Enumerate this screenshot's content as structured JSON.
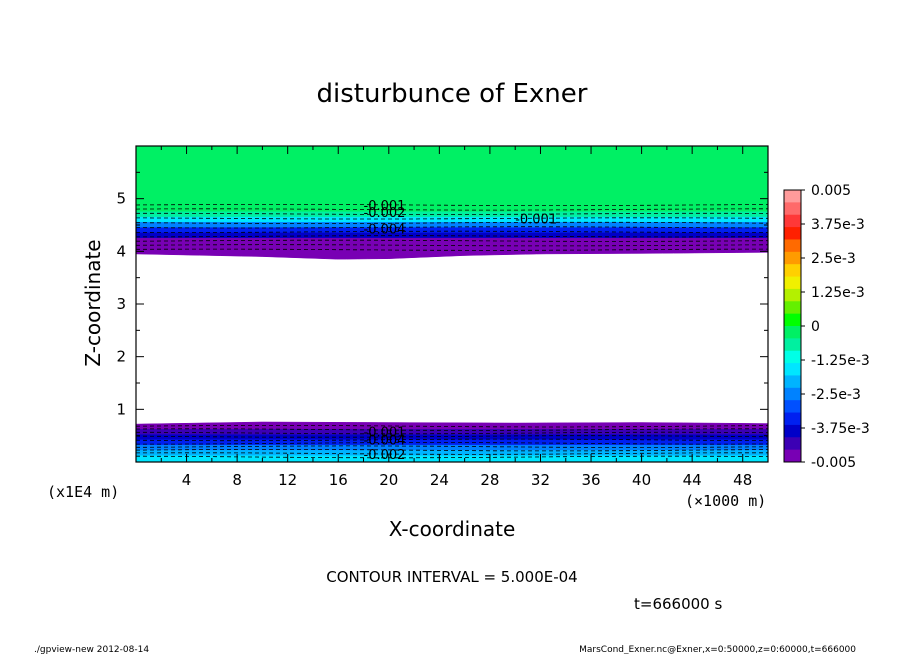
{
  "chart_data": {
    "type": "heatmap",
    "title": "disturbunce of Exner",
    "xlabel": "X-coordinate",
    "ylabel": "Z-coordinate",
    "x_unit": "(×1000 m)",
    "y_unit": "(x1E4 m)",
    "xlim": [
      0,
      50
    ],
    "ylim": [
      0,
      6
    ],
    "x_ticks": [
      4,
      8,
      12,
      16,
      20,
      24,
      28,
      32,
      36,
      40,
      44,
      48
    ],
    "y_ticks": [
      1,
      2,
      3,
      4,
      5
    ],
    "grid": false,
    "colorbar": {
      "placement": "right",
      "range": [
        -0.005,
        0.005
      ],
      "labels": [
        "0.005",
        "3.75e-3",
        "2.5e-3",
        "1.25e-3",
        "0",
        "-1.25e-3",
        "-2.5e-3",
        "-3.75e-3",
        "-0.005"
      ],
      "colors": [
        "#ff9b9b",
        "#ff6a6a",
        "#ff3838",
        "#ff2000",
        "#ff6a00",
        "#ff9b00",
        "#ffd000",
        "#f0f000",
        "#b4f000",
        "#64f000",
        "#00ff00",
        "#00f064",
        "#00f0a0",
        "#00ffe6",
        "#00e6ff",
        "#00b4ff",
        "#0082ff",
        "#0050ff",
        "#0020f0",
        "#0000c8",
        "#3c00b4",
        "#7800b4"
      ]
    },
    "contour_interval_label": "CONTOUR INTERVAL = 5.000E-04",
    "upper_band": {
      "z_top": 4.88,
      "z_bottom_min": 3.85,
      "z_bottom_max": 3.98,
      "bottom_profile": [
        [
          0,
          3.95
        ],
        [
          10,
          3.9
        ],
        [
          16,
          3.85
        ],
        [
          20,
          3.86
        ],
        [
          26,
          3.92
        ],
        [
          32,
          3.95
        ],
        [
          40,
          3.96
        ],
        [
          50,
          3.98
        ]
      ],
      "levels": [
        0.0,
        -0.001,
        -0.002,
        -0.003,
        -0.004,
        -0.005
      ],
      "contour_labels": [
        "-0.001",
        "-0.002",
        "-0.004",
        "-0.001"
      ]
    },
    "lower_band": {
      "z_top_min": 0.72,
      "z_top_max": 0.78,
      "top_profile": [
        [
          0,
          0.72
        ],
        [
          10,
          0.76
        ],
        [
          20,
          0.75
        ],
        [
          30,
          0.74
        ],
        [
          40,
          0.75
        ],
        [
          50,
          0.73
        ]
      ],
      "levels": [
        -0.005,
        -0.004,
        -0.003,
        -0.002,
        -0.001
      ],
      "contour_labels": [
        "-0.001",
        "-0.004",
        "-0.002"
      ]
    },
    "time_label": "t=666000 s"
  },
  "footer": {
    "left": "./gpview-new   2012-08-14",
    "right": "MarsCond_Exner.nc@Exner,x=0:50000,z=0:60000,t=666000"
  }
}
